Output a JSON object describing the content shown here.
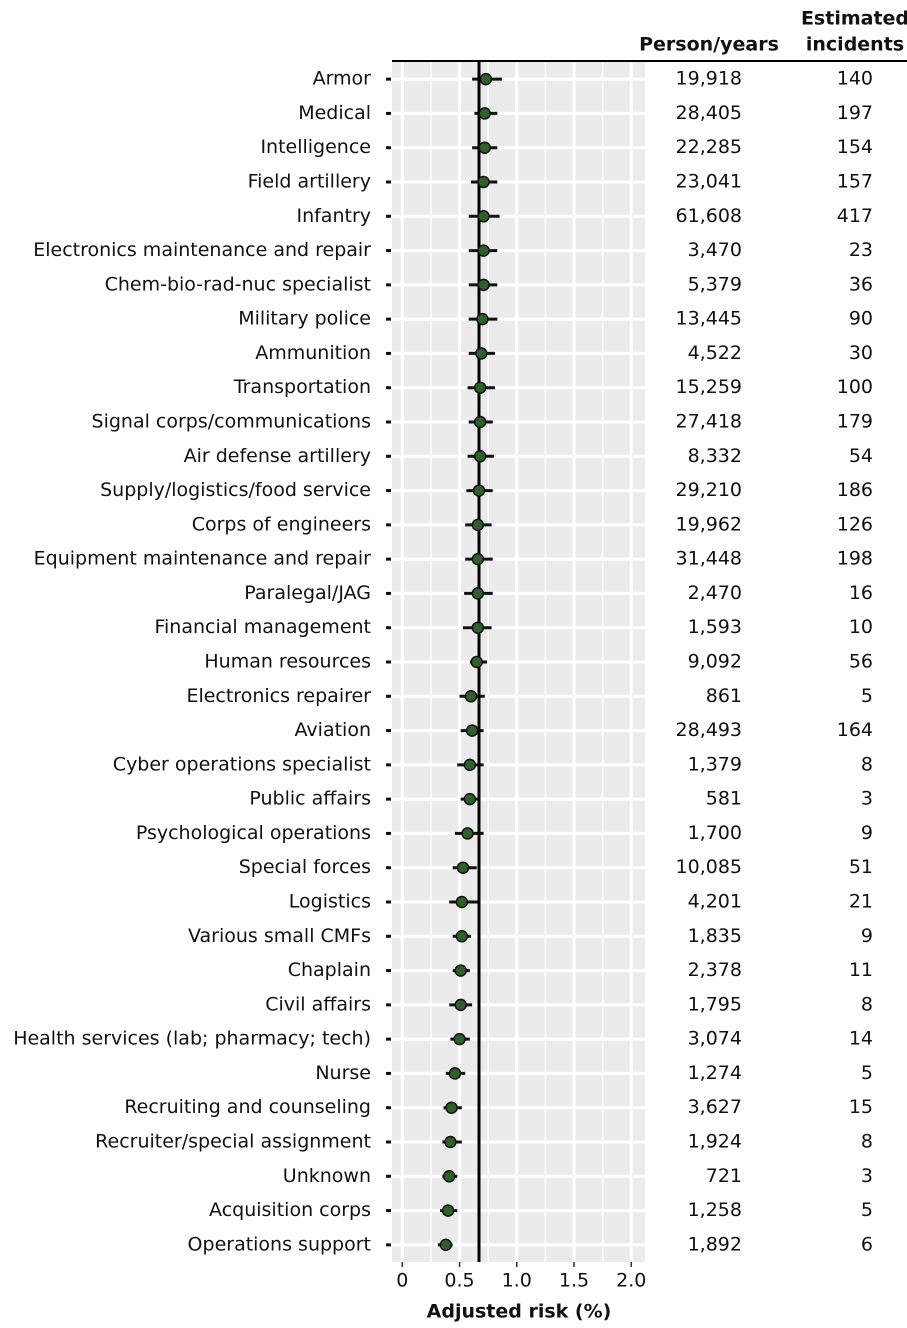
{
  "chart_data": {
    "type": "forest",
    "x_label": "Adjusted risk (%)",
    "person_years_header": "Person/years",
    "incidents_header": [
      "Estimated",
      "incidents"
    ],
    "categories": [
      "Armor",
      "Medical",
      "Intelligence",
      "Field artillery",
      "Infantry",
      "Electronics maintenance and repair",
      "Chem-bio-rad-nuc specialist",
      "Military police",
      "Ammunition",
      "Transportation",
      "Signal corps/communications",
      "Air defense artillery",
      "Supply/logistics/food service",
      "Corps of engineers",
      "Equipment maintenance and repair",
      "Paralegal/JAG",
      "Financial management",
      "Human resources",
      "Electronics repairer",
      "Aviation",
      "Cyber operations specialist",
      "Public affairs",
      "Psychological operations",
      "Special forces",
      "Logistics",
      "Various small CMFs",
      "Chaplain",
      "Civil affairs",
      "Health services (lab; pharmacy; tech)",
      "Nurse",
      "Recruiting and counseling",
      "Recruiter/special assignment",
      "Unknown",
      "Acquisition corps",
      "Operations support"
    ],
    "values": [
      0.73,
      0.72,
      0.72,
      0.71,
      0.71,
      0.71,
      0.71,
      0.7,
      0.69,
      0.68,
      0.68,
      0.68,
      0.67,
      0.66,
      0.66,
      0.66,
      0.66,
      0.65,
      0.6,
      0.61,
      0.59,
      0.59,
      0.57,
      0.53,
      0.52,
      0.52,
      0.51,
      0.51,
      0.5,
      0.46,
      0.43,
      0.42,
      0.41,
      0.4,
      0.38
    ],
    "lower": [
      0.61,
      0.63,
      0.61,
      0.6,
      0.58,
      0.58,
      0.58,
      0.58,
      0.58,
      0.57,
      0.58,
      0.57,
      0.56,
      0.55,
      0.55,
      0.54,
      0.53,
      0.59,
      0.5,
      0.51,
      0.48,
      0.51,
      0.46,
      0.44,
      0.41,
      0.44,
      0.44,
      0.41,
      0.42,
      0.38,
      0.36,
      0.35,
      0.35,
      0.33,
      0.31
    ],
    "upper": [
      0.87,
      0.83,
      0.83,
      0.83,
      0.85,
      0.83,
      0.83,
      0.83,
      0.81,
      0.81,
      0.79,
      0.8,
      0.79,
      0.78,
      0.79,
      0.79,
      0.78,
      0.74,
      0.72,
      0.71,
      0.71,
      0.66,
      0.71,
      0.65,
      0.66,
      0.6,
      0.59,
      0.61,
      0.59,
      0.55,
      0.52,
      0.52,
      0.48,
      0.48,
      0.44
    ],
    "color": "#2f5f2b",
    "reference": 0.67,
    "person_years": [
      "19,918",
      "28,405",
      "22,285",
      "23,041",
      "61,608",
      "3,470",
      "5,379",
      "13,445",
      "4,522",
      "15,259",
      "27,418",
      "8,332",
      "29,210",
      "19,962",
      "31,448",
      "2,470",
      "1,593",
      "9,092",
      "861",
      "28,493",
      "1,379",
      "581",
      "1,700",
      "10,085",
      "4,201",
      "1,835",
      "2,378",
      "1,795",
      "3,074",
      "1,274",
      "3,627",
      "1,924",
      "721",
      "1,258",
      "1,892"
    ],
    "incidents": [
      140,
      197,
      154,
      157,
      417,
      23,
      36,
      90,
      30,
      100,
      179,
      54,
      186,
      126,
      198,
      16,
      10,
      56,
      5,
      164,
      8,
      3,
      9,
      51,
      21,
      9,
      11,
      8,
      14,
      5,
      15,
      8,
      3,
      5,
      6
    ],
    "xlim": [
      -0.09,
      2.12
    ],
    "xticks": [
      0,
      0.5,
      {
        "value": 1,
        "label": "1.0"
      },
      1.5,
      {
        "value": 2,
        "label": "2.0"
      }
    ],
    "xminor": [
      0.25,
      0.75,
      1.25,
      1.75
    ],
    "grid": true
  }
}
